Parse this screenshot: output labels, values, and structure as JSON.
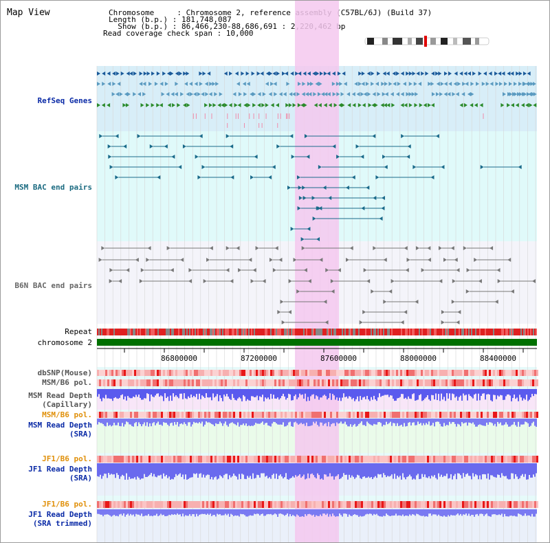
{
  "header": {
    "view_title": "Map View",
    "chromosome_line": "Chromosome     : Chromosome 2, reference assembly (C57BL/6J) (Build 37)",
    "length_line": "Length (b.p.) : 181,748,087",
    "show_line": "  Show (b.p.) : 86,466,230-88,686,691 : 2,220,462 bp",
    "coverage_line": "Read coverage check span : 10,000"
  },
  "tracks": {
    "refseq": "RefSeq Genes",
    "msm_bac": "MSM BAC end pairs",
    "b6n_bac": "B6N BAC end pairs",
    "repeat": "Repeat",
    "chromosome": "chromosome 2",
    "dbsnp": "dbSNP(Mouse)",
    "msm_b6_pol_1": "MSM/B6 pol.",
    "msm_depth_cap_1": "MSM Read Depth",
    "msm_depth_cap_2": "(Capillary)",
    "msm_b6_pol_2": "MSM/B6 pol.",
    "msm_depth_sra_1": "MSM Read Depth",
    "msm_depth_sra_2": "(SRA)",
    "jf1_b6_pol_1": "JF1/B6 pol.",
    "jf1_depth_sra_1": "JF1 Read Depth",
    "jf1_depth_sra_2": "(SRA)",
    "jf1_b6_pol_2": "JF1/B6 pol.",
    "jf1_depth_trim_1": "JF1 Read Depth",
    "jf1_depth_trim_2": "(SRA trimmed)"
  },
  "ruler": {
    "ticks": [
      "86800000",
      "87200000",
      "87600000",
      "88000000",
      "88400000"
    ]
  },
  "colors": {
    "refseq_dark": "#1a5a9a",
    "refseq_light": "#5a9ac0",
    "refseq_green": "#2a8a2a",
    "msm_bac": "#1a6a8a",
    "b6n_bac": "#777777",
    "chromosome": "#007000",
    "highlight": "#f4c8ef",
    "depth_blue": "#3a3ae0"
  }
}
